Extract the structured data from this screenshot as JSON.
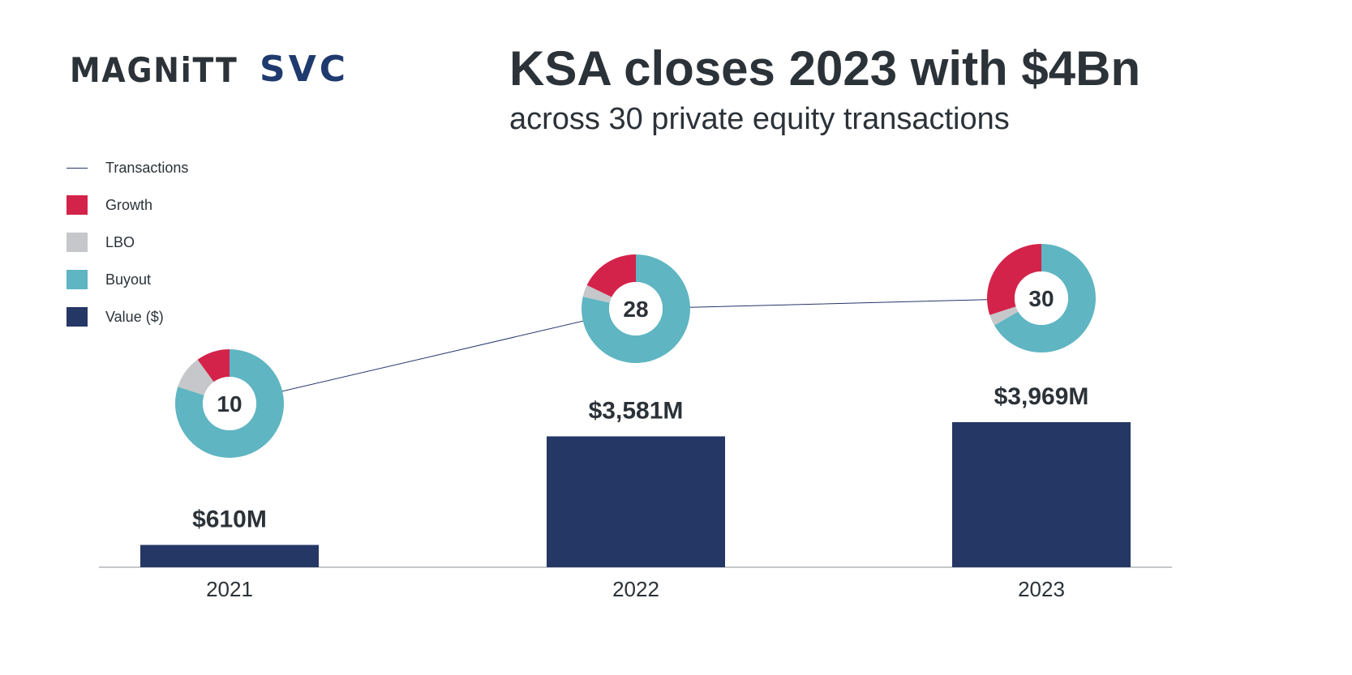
{
  "logos": {
    "magnitt": "MAGNiTT",
    "svc": "SVC"
  },
  "title": "KSA closes 2023 with $4Bn",
  "subtitle": "across 30 private equity transactions",
  "colors": {
    "growth": "#d4234a",
    "lbo": "#c5c7ca",
    "buyout": "#5fb5c2",
    "value": "#253765",
    "line": "#25356a",
    "text": "#2b3238"
  },
  "chart_data": {
    "type": "bar",
    "categories": [
      "2021",
      "2022",
      "2023"
    ],
    "legend": [
      "Transactions",
      "Growth",
      "LBO",
      "Buyout",
      "Value ($)"
    ],
    "legend_position": "top-left",
    "series": [
      {
        "name": "Value ($)",
        "type": "bar",
        "values": [
          610,
          3581,
          3969
        ],
        "labels": [
          "$610M",
          "$3,581M",
          "$3,969M"
        ],
        "unit": "$M"
      },
      {
        "name": "Transactions",
        "type": "line",
        "values": [
          10,
          28,
          30
        ]
      }
    ],
    "donuts": [
      {
        "year": "2021",
        "total": 10,
        "Growth": 1,
        "LBO": 1,
        "Buyout": 8
      },
      {
        "year": "2022",
        "total": 28,
        "Growth": 5,
        "LBO": 1,
        "Buyout": 22
      },
      {
        "year": "2023",
        "total": 30,
        "Growth": 9,
        "LBO": 1,
        "Buyout": 20
      }
    ],
    "grid": false
  }
}
